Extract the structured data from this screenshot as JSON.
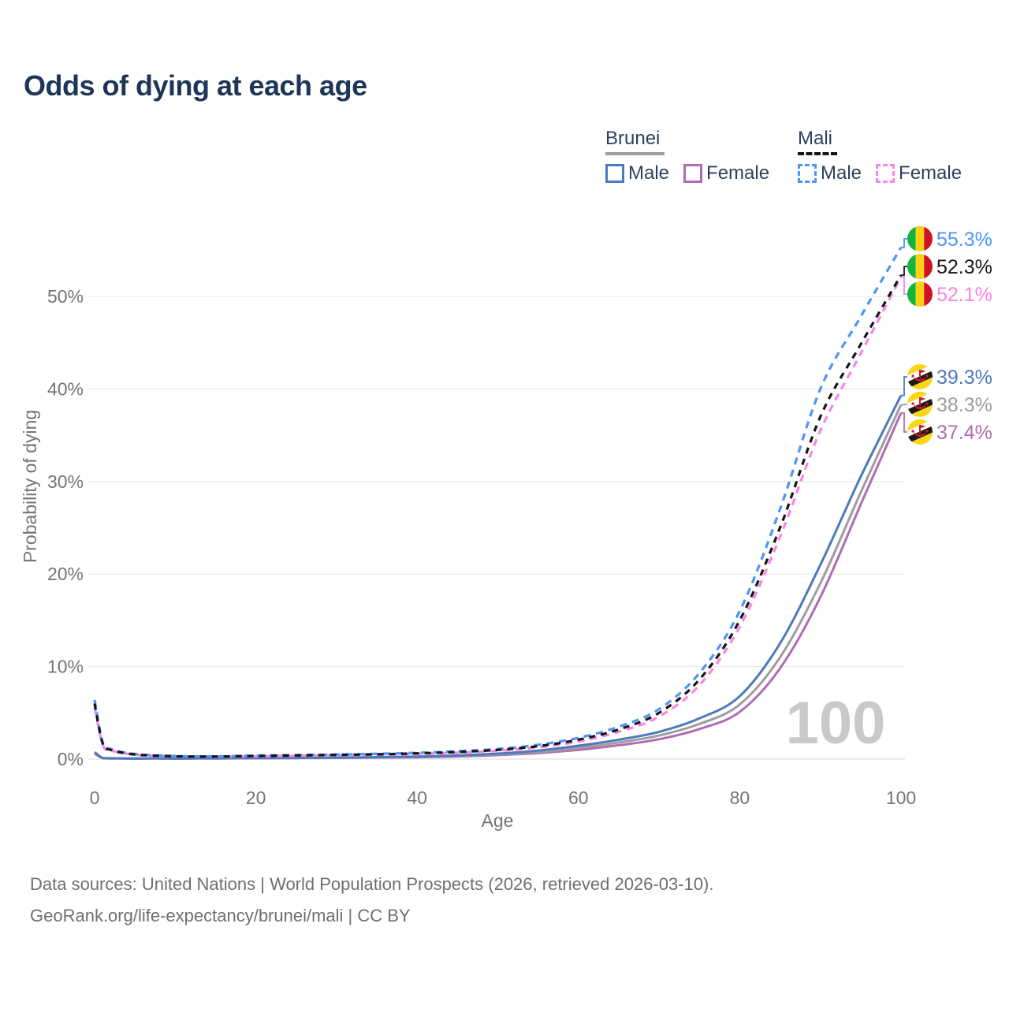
{
  "header": {
    "title": "Odds of dying at each age",
    "title_color": "#1d3557"
  },
  "legend": {
    "groups": [
      {
        "name": "Brunei",
        "line_style": "solid",
        "underline_color": "#9e9e9e",
        "items": [
          {
            "label": "Male",
            "color": "#4e79bd"
          },
          {
            "label": "Female",
            "color": "#b06cb4"
          }
        ]
      },
      {
        "name": "Mali",
        "line_style": "dashed",
        "underline_color": "#141414",
        "items": [
          {
            "label": "Male",
            "color": "#4d94fb"
          },
          {
            "label": "Female",
            "color": "#fb84e4"
          }
        ]
      }
    ]
  },
  "chart_data": {
    "type": "line",
    "title": "Odds of dying at each age",
    "xlabel": "Age",
    "ylabel": "Probability of dying",
    "x_ticks": [
      0,
      20,
      40,
      60,
      80,
      100
    ],
    "y_tick_labels": [
      "0%",
      "10%",
      "20%",
      "30%",
      "40%",
      "50%"
    ],
    "y_ticks_pct": [
      0,
      10,
      20,
      30,
      40,
      50
    ],
    "xlim": [
      0,
      100
    ],
    "ylim_pct": [
      0,
      57
    ],
    "grid": "horizontal",
    "grid_color": "#ececec",
    "axis_text_color": "#757575",
    "watermark": "100",
    "watermark_color": "#c9c9c9",
    "ages": [
      0,
      1,
      2,
      5,
      10,
      15,
      20,
      25,
      30,
      35,
      40,
      45,
      50,
      55,
      60,
      65,
      70,
      75,
      80,
      85,
      90,
      95,
      100
    ],
    "series": [
      {
        "id": "brunei-female",
        "country": "Brunei",
        "sex": "Female",
        "color": "#b06cb4",
        "dash": "",
        "flag": "brunei",
        "end_label": "37.4%",
        "values": [
          0.6,
          0.1,
          0.07,
          0.05,
          0.05,
          0.07,
          0.09,
          0.11,
          0.13,
          0.16,
          0.2,
          0.28,
          0.43,
          0.65,
          1.0,
          1.5,
          2.15,
          3.25,
          5.1,
          9.8,
          17.5,
          27.5,
          37.4
        ]
      },
      {
        "id": "brunei-both",
        "country": "Brunei",
        "sex": "Both sexes",
        "color": "#9e9e9e",
        "dash": "",
        "flag": "brunei",
        "end_label": "38.3%",
        "values": [
          0.68,
          0.11,
          0.08,
          0.055,
          0.055,
          0.08,
          0.1,
          0.12,
          0.15,
          0.18,
          0.24,
          0.34,
          0.51,
          0.78,
          1.22,
          1.8,
          2.55,
          3.8,
          5.9,
          11.0,
          19.0,
          28.8,
          38.3
        ]
      },
      {
        "id": "brunei-male",
        "country": "Brunei",
        "sex": "Male",
        "color": "#4e79bd",
        "dash": "",
        "flag": "brunei",
        "end_label": "39.3%",
        "values": [
          0.75,
          0.12,
          0.09,
          0.06,
          0.06,
          0.09,
          0.12,
          0.14,
          0.17,
          0.21,
          0.28,
          0.4,
          0.6,
          0.92,
          1.45,
          2.1,
          2.95,
          4.4,
          6.8,
          12.5,
          21.0,
          30.5,
          39.3
        ]
      },
      {
        "id": "mali-female",
        "country": "Mali",
        "sex": "Female",
        "color": "#fb84e4",
        "dash": "9 7",
        "flag": "mali",
        "end_label": "52.1%",
        "values": [
          5.6,
          1.6,
          0.95,
          0.48,
          0.29,
          0.26,
          0.3,
          0.36,
          0.42,
          0.48,
          0.57,
          0.7,
          0.9,
          1.27,
          1.9,
          2.95,
          4.6,
          8.0,
          14.3,
          24.0,
          35.5,
          43.8,
          52.1
        ]
      },
      {
        "id": "mali-male",
        "country": "Mali",
        "sex": "Male",
        "color": "#4d94fb",
        "dash": "9 7",
        "flag": "mali",
        "end_label": "55.3%",
        "values": [
          6.4,
          1.8,
          1.1,
          0.55,
          0.33,
          0.3,
          0.38,
          0.44,
          0.5,
          0.57,
          0.68,
          0.85,
          1.1,
          1.55,
          2.3,
          3.5,
          5.4,
          9.3,
          16.0,
          27.0,
          40.0,
          47.8,
          55.3
        ]
      },
      {
        "id": "mali-both",
        "country": "Mali",
        "sex": "Both sexes",
        "color": "#161616",
        "dash": "8 7",
        "flag": "mali",
        "end_label": "52.3%",
        "values": [
          6.0,
          1.7,
          1.0,
          0.5,
          0.31,
          0.28,
          0.34,
          0.4,
          0.46,
          0.52,
          0.62,
          0.77,
          1.0,
          1.4,
          2.1,
          3.2,
          5.0,
          8.6,
          15.0,
          25.0,
          37.0,
          44.8,
          52.3
        ]
      }
    ],
    "flag_colors": {
      "mali": {
        "green": "#14b53a",
        "gold": "#fcd116",
        "red": "#ce1126"
      },
      "brunei": {
        "yellow": "#f9d616",
        "white": "#ffffff",
        "black": "#1a1a1a",
        "red": "#d11a2a"
      }
    }
  },
  "footer": {
    "line1": "Data sources: United Nations | World Population Prospects (2026, retrieved 2026-03-10).",
    "line2": "GeoRank.org/life-expectancy/brunei/mali | CC BY"
  }
}
